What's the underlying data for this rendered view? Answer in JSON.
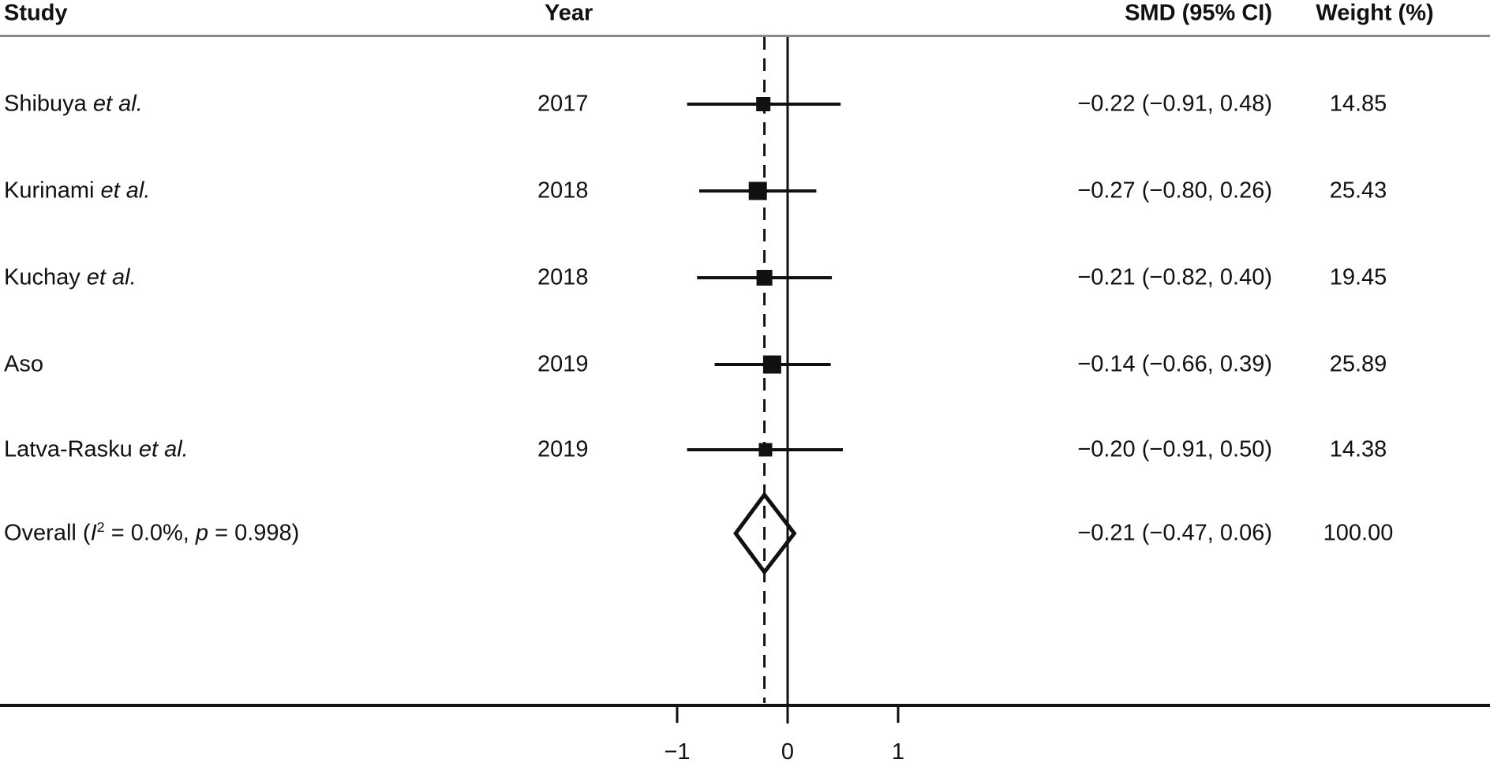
{
  "header": {
    "study": "Study",
    "year": "Year",
    "smd": "SMD (95% CI)",
    "weight": "Weight (%)"
  },
  "colors": {
    "text": "#111111",
    "marker": "#111111",
    "axis": "#111111",
    "header_rule": "#8a8a8a",
    "background": "#ffffff"
  },
  "chart_data": {
    "type": "forest",
    "effect_measure": "SMD",
    "null_line_value": 0,
    "overall_line_value": -0.21,
    "x_axis": {
      "ticks": [
        {
          "value": -1,
          "label": "−1"
        },
        {
          "value": 0,
          "label": "0"
        },
        {
          "value": 1,
          "label": "1"
        }
      ],
      "range_shown": [
        -1,
        1
      ]
    },
    "studies": [
      {
        "name": "Shibuya",
        "etal": "et al.",
        "year": "2017",
        "smd": -0.22,
        "ci_low": -0.91,
        "ci_high": 0.48,
        "smd_ci_text": "−0.22 (−0.91, 0.48)",
        "weight": 14.85,
        "weight_text": "14.85"
      },
      {
        "name": "Kurinami",
        "etal": "et al.",
        "year": "2018",
        "smd": -0.27,
        "ci_low": -0.8,
        "ci_high": 0.26,
        "smd_ci_text": "−0.27 (−0.80, 0.26)",
        "weight": 25.43,
        "weight_text": "25.43"
      },
      {
        "name": "Kuchay",
        "etal": "et al.",
        "year": "2018",
        "smd": -0.21,
        "ci_low": -0.82,
        "ci_high": 0.4,
        "smd_ci_text": "−0.21 (−0.82, 0.40)",
        "weight": 19.45,
        "weight_text": "19.45"
      },
      {
        "name": "Aso",
        "etal": "",
        "year": "2019",
        "smd": -0.14,
        "ci_low": -0.66,
        "ci_high": 0.39,
        "smd_ci_text": "−0.14 (−0.66, 0.39)",
        "weight": 25.89,
        "weight_text": "25.89"
      },
      {
        "name": "Latva-Rasku",
        "etal": "et al.",
        "year": "2019",
        "smd": -0.2,
        "ci_low": -0.91,
        "ci_high": 0.5,
        "smd_ci_text": "−0.20 (−0.91, 0.50)",
        "weight": 14.38,
        "weight_text": "14.38"
      }
    ],
    "overall": {
      "label_prefix": "Overall (",
      "heterogeneity_stat": "I",
      "heterogeneity_sup": "2",
      "label_mid": " = 0.0%, ",
      "p_stat": "p",
      "label_suffix": " = 0.998)",
      "smd": -0.21,
      "ci_low": -0.47,
      "ci_high": 0.06,
      "smd_ci_text": "−0.21 (−0.47, 0.06)",
      "weight": 100.0,
      "weight_text": "100.00"
    }
  }
}
